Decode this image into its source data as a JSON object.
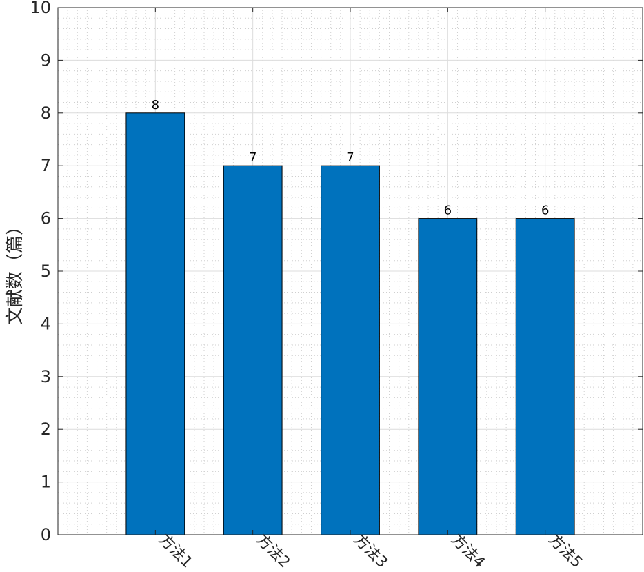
{
  "chart_data": {
    "type": "bar",
    "categories": [
      "方法1",
      "方法2",
      "方法3",
      "方法4",
      "方法5"
    ],
    "values": [
      8,
      7,
      7,
      6,
      6
    ],
    "data_labels": [
      "8",
      "7",
      "7",
      "6",
      "6"
    ],
    "title": "",
    "xlabel": "",
    "ylabel": "文献数（篇）",
    "ylim": [
      0,
      10
    ],
    "yticks": [
      0,
      1,
      2,
      3,
      4,
      5,
      6,
      7,
      8,
      9,
      10
    ],
    "xlim": [
      0,
      6
    ],
    "grid": true,
    "minor_grid": true,
    "bar_color": "#0072BD",
    "xtick_rotation": 45
  }
}
